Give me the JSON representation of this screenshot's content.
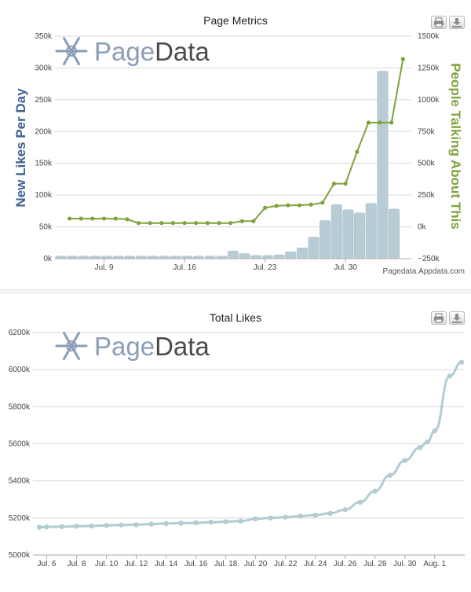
{
  "charts": {
    "metrics": {
      "print_icon": "print-icon",
      "export_icon": "download-icon"
    },
    "total": {
      "print_icon": "print-icon",
      "export_icon": "download-icon"
    }
  },
  "logo": {
    "part1": "Page",
    "part2": "Data",
    "icon": "snowflake-icon",
    "color_light": "#8a9db8",
    "color_dark": "#4a4a4a"
  },
  "credit": "Pagedata.Appdata.com",
  "chart_data": [
    {
      "type": "bar+line",
      "title": "Page Metrics",
      "ylabel": "New Likes Per Day",
      "y2label": "People Talking About This",
      "ylim": [
        0,
        350000
      ],
      "y2lim": [
        -250000,
        1500000
      ],
      "yticks": [
        "0k",
        "50k",
        "100k",
        "150k",
        "200k",
        "250k",
        "300k",
        "350k"
      ],
      "y2ticks": [
        "−250k",
        "0k",
        "250k",
        "500k",
        "750k",
        "1000k",
        "1250k",
        "1500k"
      ],
      "xticks": [
        {
          "label": "Jul. 9",
          "day": 9
        },
        {
          "label": "Jul. 16",
          "day": 16
        },
        {
          "label": "Jul. 23",
          "day": 23
        },
        {
          "label": "Jul. 30",
          "day": 30
        }
      ],
      "x_start_day": 5,
      "x_end_day": 36,
      "bar_days": [
        5,
        6,
        7,
        8,
        9,
        10,
        11,
        12,
        13,
        14,
        15,
        16,
        17,
        18,
        19,
        20,
        21,
        22,
        23,
        24,
        25,
        26,
        27,
        28,
        29,
        30,
        31,
        32,
        33,
        34,
        35
      ],
      "bars": [
        4000,
        4000,
        4000,
        4000,
        4000,
        4000,
        4000,
        4000,
        4000,
        4000,
        4000,
        4000,
        4000,
        4000,
        4000,
        12000,
        8000,
        5000,
        5000,
        6000,
        11000,
        17000,
        34000,
        60000,
        85000,
        77000,
        72000,
        87000,
        295000,
        78000,
        0
      ],
      "line_days": [
        6,
        7,
        8,
        9,
        10,
        11,
        12,
        13,
        14,
        15,
        16,
        17,
        18,
        19,
        20,
        21,
        22,
        23,
        24,
        25,
        26,
        27,
        28,
        29,
        30,
        31,
        32,
        33,
        34,
        35
      ],
      "line": [
        65000,
        65000,
        65000,
        65000,
        65000,
        60000,
        30000,
        30000,
        30000,
        30000,
        30000,
        30000,
        30000,
        30000,
        30000,
        45000,
        45000,
        150000,
        165000,
        170000,
        170000,
        175000,
        190000,
        340000,
        340000,
        590000,
        820000,
        820000,
        820000,
        1320000
      ],
      "bar_color": "#b8ccd6",
      "line_color": "#7fa23c",
      "ylabel_color": "#3e6290",
      "y2label_color": "#7fa23c"
    },
    {
      "type": "line",
      "title": "Total Likes",
      "ylim": [
        5000000,
        6200000
      ],
      "yticks": [
        "5000k",
        "5200k",
        "5400k",
        "5600k",
        "5800k",
        "6000k",
        "6200k"
      ],
      "xticks": [
        {
          "label": "Jul. 6",
          "day": 6
        },
        {
          "label": "Jul. 8",
          "day": 8
        },
        {
          "label": "Jul. 10",
          "day": 10
        },
        {
          "label": "Jul. 12",
          "day": 12
        },
        {
          "label": "Jul. 14",
          "day": 14
        },
        {
          "label": "Jul. 16",
          "day": 16
        },
        {
          "label": "Jul. 18",
          "day": 18
        },
        {
          "label": "Jul. 20",
          "day": 20
        },
        {
          "label": "Jul. 22",
          "day": 22
        },
        {
          "label": "Jul. 24",
          "day": 24
        },
        {
          "label": "Jul. 26",
          "day": 26
        },
        {
          "label": "Jul. 28",
          "day": 28
        },
        {
          "label": "Jul. 30",
          "day": 30
        },
        {
          "label": "Aug. 1",
          "day": 32
        }
      ],
      "x_start_day": 5.5,
      "x_end_day": 33.8,
      "days": [
        5.5,
        6,
        7,
        8,
        9,
        10,
        11,
        12,
        13,
        14,
        15,
        16,
        17,
        18,
        19,
        20,
        21,
        22,
        23,
        24,
        25,
        26,
        27,
        28,
        29,
        30,
        31,
        31.5,
        32,
        33,
        33.8
      ],
      "values": [
        5150000,
        5152000,
        5153000,
        5155000,
        5157000,
        5160000,
        5162000,
        5164000,
        5167000,
        5170000,
        5172000,
        5174000,
        5177000,
        5180000,
        5183000,
        5195000,
        5200000,
        5205000,
        5210000,
        5215000,
        5225000,
        5245000,
        5285000,
        5345000,
        5430000,
        5510000,
        5580000,
        5610000,
        5670000,
        5965000,
        6040000
      ],
      "line_color": "#b2ccd4"
    }
  ]
}
